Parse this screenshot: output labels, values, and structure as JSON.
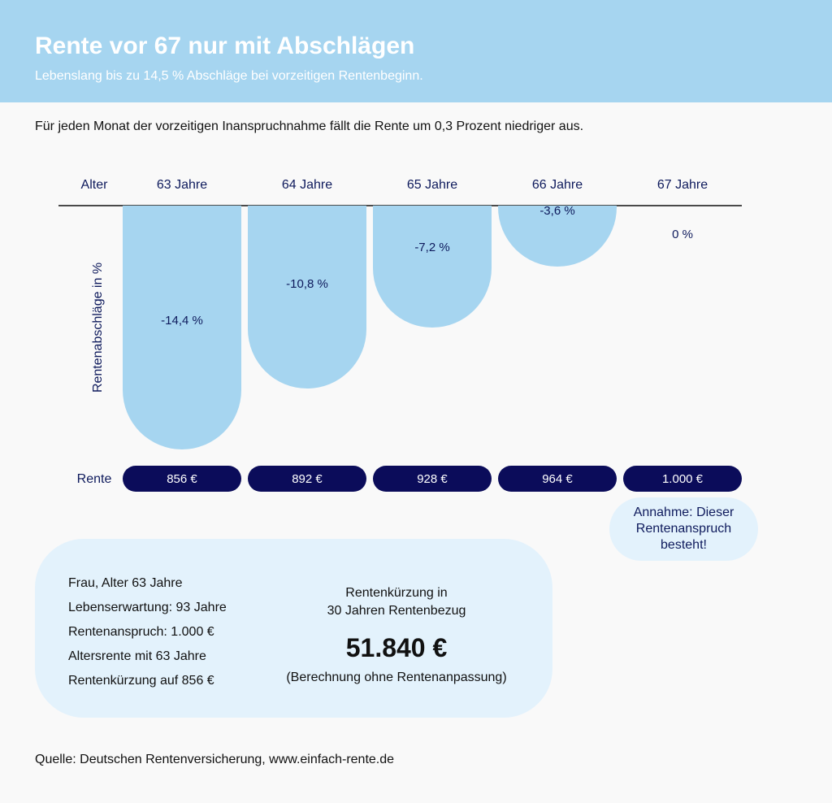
{
  "header": {
    "title": "Rente vor 67 nur mit Abschlägen",
    "subtitle": "Lebenslang bis zu 14,5 % Abschläge bei vorzeitigen Rentenbeginn."
  },
  "intro": "Für jeden Monat der vorzeitigen Inanspruchnahme fällt die Rente um 0,3 Prozent niedriger aus.",
  "chart_data": {
    "type": "bar",
    "x_header": "Alter",
    "ylabel": "Rentenabschläge in %",
    "categories": [
      "63 Jahre",
      "64 Jahre",
      "65 Jahre",
      "66 Jahre",
      "67 Jahre"
    ],
    "values": [
      -14.4,
      -10.8,
      -7.2,
      -3.6,
      0
    ],
    "value_labels": [
      "-14,4 %",
      "-10,8 %",
      "-7,2 %",
      "-3,6 %",
      "0 %"
    ],
    "rente_label": "Rente",
    "rente_values": [
      "856 €",
      "892 €",
      "928 €",
      "964 €",
      "1.000 €"
    ],
    "ylim": [
      -14.4,
      0
    ],
    "colors": {
      "bar": "#a6d5f0",
      "pill": "#0b0c5a",
      "text": "#0e1a5c"
    }
  },
  "note": "Annahme: Dieser Rentenanspruch besteht!",
  "info": {
    "facts": [
      "Frau, Alter 63 Jahre",
      "Lebenserwartung: 93 Jahre",
      "Rentenanspruch: 1.000 €",
      "Altersrente mit 63 Jahre",
      "Rentenkürzung auf 856 €"
    ],
    "calc_label_line1": "Rentenkürzung in",
    "calc_label_line2": "30 Jahren Rentenbezug",
    "calc_amount": "51.840 €",
    "calc_note": "(Berechnung ohne Rentenanpassung)"
  },
  "source": "Quelle: Deutschen Rentenversicherung, www.einfach-rente.de"
}
